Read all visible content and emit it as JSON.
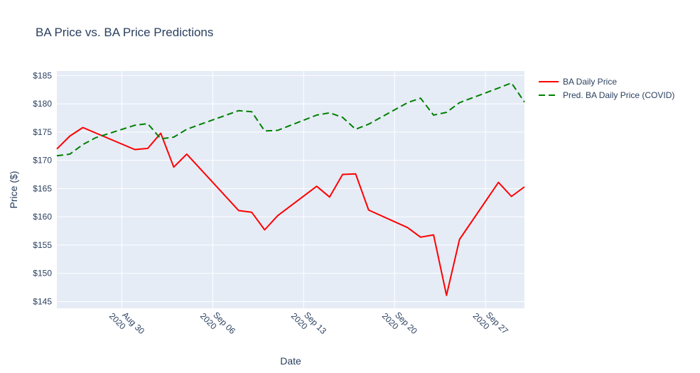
{
  "chart_data": {
    "type": "line",
    "title": "BA Price vs. BA Price Predictions",
    "xlabel": "Date",
    "ylabel": "Price ($)",
    "xlim": [
      "2020-08-25",
      "2020-09-30"
    ],
    "ylim": [
      143.8,
      185.8
    ],
    "grid": true,
    "legend_position": "top-right outside",
    "y_ticks": [
      {
        "value": 145,
        "label": "$145"
      },
      {
        "value": 150,
        "label": "$150"
      },
      {
        "value": 155,
        "label": "$155"
      },
      {
        "value": 160,
        "label": "$160"
      },
      {
        "value": 165,
        "label": "$165"
      },
      {
        "value": 170,
        "label": "$170"
      },
      {
        "value": 175,
        "label": "$175"
      },
      {
        "value": 180,
        "label": "$180"
      },
      {
        "value": 185,
        "label": "$185"
      }
    ],
    "x_ticks": [
      {
        "date": "2020-08-30",
        "line1": "Aug 30",
        "line2": "2020"
      },
      {
        "date": "2020-09-06",
        "line1": "Sep 06",
        "line2": "2020"
      },
      {
        "date": "2020-09-13",
        "line1": "Sep 13",
        "line2": "2020"
      },
      {
        "date": "2020-09-20",
        "line1": "Sep 20",
        "line2": "2020"
      },
      {
        "date": "2020-09-27",
        "line1": "Sep 27",
        "line2": "2020"
      }
    ],
    "series": [
      {
        "name": "BA Daily Price",
        "color": "#ff0000",
        "dash": "solid",
        "points": [
          [
            "2020-08-25",
            172.0
          ],
          [
            "2020-08-26",
            174.3
          ],
          [
            "2020-08-27",
            175.8
          ],
          [
            "2020-08-31",
            171.9
          ],
          [
            "2020-09-01",
            172.1
          ],
          [
            "2020-09-02",
            174.8
          ],
          [
            "2020-09-03",
            168.8
          ],
          [
            "2020-09-04",
            171.1
          ],
          [
            "2020-09-08",
            161.1
          ],
          [
            "2020-09-09",
            160.8
          ],
          [
            "2020-09-10",
            157.7
          ],
          [
            "2020-09-11",
            160.2
          ],
          [
            "2020-09-14",
            165.4
          ],
          [
            "2020-09-15",
            163.5
          ],
          [
            "2020-09-16",
            167.5
          ],
          [
            "2020-09-17",
            167.6
          ],
          [
            "2020-09-18",
            161.2
          ],
          [
            "2020-09-21",
            158.1
          ],
          [
            "2020-09-22",
            156.4
          ],
          [
            "2020-09-23",
            156.8
          ],
          [
            "2020-09-24",
            146.1
          ],
          [
            "2020-09-25",
            156.0
          ],
          [
            "2020-09-28",
            166.1
          ],
          [
            "2020-09-29",
            163.6
          ],
          [
            "2020-09-30",
            165.3
          ]
        ]
      },
      {
        "name": "Pred. BA Daily Price (COVID)",
        "color": "#008000",
        "dash": "dashed",
        "points": [
          [
            "2020-08-25",
            170.8
          ],
          [
            "2020-08-26",
            171.1
          ],
          [
            "2020-08-27",
            172.8
          ],
          [
            "2020-08-28",
            174.0
          ],
          [
            "2020-08-31",
            176.2
          ],
          [
            "2020-09-01",
            176.5
          ],
          [
            "2020-09-02",
            173.8
          ],
          [
            "2020-09-03",
            174.1
          ],
          [
            "2020-09-04",
            175.5
          ],
          [
            "2020-09-08",
            178.8
          ],
          [
            "2020-09-09",
            178.6
          ],
          [
            "2020-09-10",
            175.2
          ],
          [
            "2020-09-11",
            175.3
          ],
          [
            "2020-09-14",
            178.0
          ],
          [
            "2020-09-15",
            178.4
          ],
          [
            "2020-09-16",
            177.6
          ],
          [
            "2020-09-17",
            175.5
          ],
          [
            "2020-09-18",
            176.4
          ],
          [
            "2020-09-21",
            180.2
          ],
          [
            "2020-09-22",
            181.0
          ],
          [
            "2020-09-23",
            178.0
          ],
          [
            "2020-09-24",
            178.5
          ],
          [
            "2020-09-25",
            180.2
          ],
          [
            "2020-09-28",
            182.8
          ],
          [
            "2020-09-29",
            183.7
          ],
          [
            "2020-09-30",
            180.3
          ]
        ]
      }
    ]
  }
}
